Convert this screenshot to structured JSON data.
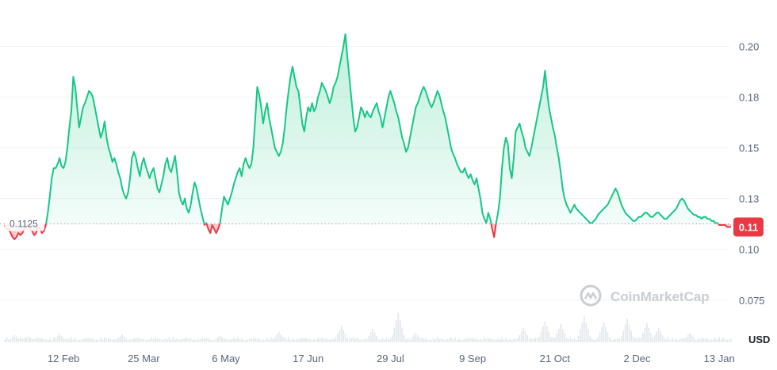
{
  "chart_data": {
    "type": "area",
    "y_unit": "USD",
    "baseline": 0.1125,
    "baseline_label": "0.1125",
    "current_price_label": "0.11",
    "ylim": [
      0.055,
      0.215
    ],
    "y_ticks": [
      {
        "value": 0.2,
        "label": "0.20"
      },
      {
        "value": 0.175,
        "label": "0.18"
      },
      {
        "value": 0.15,
        "label": "0.15"
      },
      {
        "value": 0.125,
        "label": "0.13"
      },
      {
        "value": 0.1,
        "label": "0.10"
      },
      {
        "value": 0.075,
        "label": "0.075"
      }
    ],
    "x_ticks": [
      "12 Feb",
      "25 Mar",
      "6 May",
      "17 Jun",
      "29 Jul",
      "9 Sep",
      "21 Oct",
      "2 Dec",
      "13 Jan"
    ],
    "x_tick_index": [
      30,
      71,
      113,
      155,
      197,
      239,
      281,
      323,
      365
    ],
    "values": [
      0.112,
      0.11,
      0.11,
      0.108,
      0.106,
      0.105,
      0.106,
      0.108,
      0.107,
      0.108,
      0.11,
      0.111,
      0.112,
      0.11,
      0.109,
      0.107,
      0.108,
      0.111,
      0.11,
      0.108,
      0.109,
      0.112,
      0.118,
      0.126,
      0.135,
      0.14,
      0.14,
      0.142,
      0.145,
      0.141,
      0.14,
      0.143,
      0.15,
      0.16,
      0.168,
      0.185,
      0.18,
      0.17,
      0.16,
      0.165,
      0.17,
      0.172,
      0.175,
      0.178,
      0.177,
      0.175,
      0.17,
      0.165,
      0.16,
      0.155,
      0.158,
      0.163,
      0.155,
      0.15,
      0.147,
      0.143,
      0.145,
      0.142,
      0.138,
      0.135,
      0.13,
      0.127,
      0.125,
      0.128,
      0.135,
      0.145,
      0.148,
      0.145,
      0.14,
      0.136,
      0.142,
      0.145,
      0.141,
      0.138,
      0.135,
      0.138,
      0.14,
      0.135,
      0.13,
      0.128,
      0.132,
      0.136,
      0.142,
      0.145,
      0.14,
      0.138,
      0.142,
      0.146,
      0.138,
      0.128,
      0.124,
      0.122,
      0.125,
      0.12,
      0.118,
      0.122,
      0.128,
      0.133,
      0.13,
      0.125,
      0.12,
      0.116,
      0.112,
      0.113,
      0.11,
      0.108,
      0.112,
      0.11,
      0.108,
      0.11,
      0.113,
      0.12,
      0.126,
      0.124,
      0.122,
      0.125,
      0.128,
      0.132,
      0.135,
      0.138,
      0.14,
      0.136,
      0.142,
      0.145,
      0.142,
      0.14,
      0.142,
      0.15,
      0.165,
      0.18,
      0.176,
      0.17,
      0.162,
      0.168,
      0.172,
      0.165,
      0.16,
      0.155,
      0.15,
      0.148,
      0.146,
      0.148,
      0.152,
      0.16,
      0.17,
      0.178,
      0.185,
      0.19,
      0.185,
      0.18,
      0.178,
      0.17,
      0.162,
      0.158,
      0.165,
      0.17,
      0.168,
      0.172,
      0.168,
      0.17,
      0.175,
      0.178,
      0.182,
      0.18,
      0.178,
      0.175,
      0.172,
      0.175,
      0.18,
      0.182,
      0.185,
      0.19,
      0.195,
      0.2,
      0.206,
      0.195,
      0.185,
      0.175,
      0.165,
      0.158,
      0.16,
      0.165,
      0.17,
      0.168,
      0.165,
      0.168,
      0.166,
      0.165,
      0.168,
      0.17,
      0.172,
      0.168,
      0.165,
      0.16,
      0.165,
      0.17,
      0.175,
      0.178,
      0.175,
      0.172,
      0.168,
      0.165,
      0.16,
      0.155,
      0.152,
      0.148,
      0.15,
      0.155,
      0.16,
      0.165,
      0.17,
      0.172,
      0.175,
      0.178,
      0.18,
      0.178,
      0.175,
      0.172,
      0.17,
      0.172,
      0.175,
      0.178,
      0.176,
      0.172,
      0.168,
      0.165,
      0.16,
      0.155,
      0.15,
      0.147,
      0.145,
      0.142,
      0.14,
      0.138,
      0.138,
      0.14,
      0.137,
      0.135,
      0.137,
      0.134,
      0.132,
      0.135,
      0.13,
      0.125,
      0.118,
      0.115,
      0.113,
      0.118,
      0.115,
      0.11,
      0.106,
      0.113,
      0.118,
      0.126,
      0.14,
      0.15,
      0.155,
      0.152,
      0.14,
      0.135,
      0.145,
      0.158,
      0.16,
      0.162,
      0.158,
      0.155,
      0.15,
      0.148,
      0.146,
      0.15,
      0.155,
      0.16,
      0.165,
      0.17,
      0.175,
      0.18,
      0.188,
      0.178,
      0.17,
      0.165,
      0.16,
      0.156,
      0.15,
      0.145,
      0.138,
      0.13,
      0.125,
      0.122,
      0.12,
      0.118,
      0.12,
      0.122,
      0.12,
      0.119,
      0.118,
      0.117,
      0.116,
      0.115,
      0.114,
      0.113,
      0.113,
      0.114,
      0.115,
      0.117,
      0.118,
      0.119,
      0.12,
      0.121,
      0.122,
      0.124,
      0.126,
      0.128,
      0.13,
      0.128,
      0.125,
      0.122,
      0.12,
      0.118,
      0.117,
      0.116,
      0.115,
      0.114,
      0.114,
      0.115,
      0.116,
      0.116,
      0.117,
      0.118,
      0.118,
      0.117,
      0.116,
      0.116,
      0.117,
      0.118,
      0.118,
      0.117,
      0.116,
      0.115,
      0.115,
      0.116,
      0.117,
      0.118,
      0.119,
      0.12,
      0.122,
      0.124,
      0.125,
      0.124,
      0.122,
      0.12,
      0.119,
      0.118,
      0.117,
      0.117,
      0.116,
      0.116,
      0.115,
      0.116,
      0.116,
      0.115,
      0.115,
      0.114,
      0.114,
      0.113,
      0.113,
      0.112,
      0.112,
      0.112,
      0.112,
      0.111,
      0.111,
      0.111
    ],
    "volume_spikes": [
      {
        "index": 5,
        "level": 0.15
      },
      {
        "index": 12,
        "level": 0.12
      },
      {
        "index": 28,
        "level": 0.18
      },
      {
        "index": 60,
        "level": 0.16
      },
      {
        "index": 110,
        "level": 0.14
      },
      {
        "index": 140,
        "level": 0.22
      },
      {
        "index": 172,
        "level": 0.35
      },
      {
        "index": 188,
        "level": 0.28
      },
      {
        "index": 201,
        "level": 0.62
      },
      {
        "index": 210,
        "level": 0.2
      },
      {
        "index": 265,
        "level": 0.3
      },
      {
        "index": 276,
        "level": 0.45
      },
      {
        "index": 284,
        "level": 0.38
      },
      {
        "index": 296,
        "level": 0.55
      },
      {
        "index": 306,
        "level": 0.42
      },
      {
        "index": 318,
        "level": 0.5
      },
      {
        "index": 328,
        "level": 0.4
      },
      {
        "index": 334,
        "level": 0.3
      },
      {
        "index": 350,
        "level": 0.2
      }
    ]
  },
  "watermark": {
    "brand": "CoinMarketCap",
    "color": "#c9cdd4"
  },
  "colors": {
    "up": "#16c784",
    "down": "#ea3943",
    "grid": "#eff2f5",
    "axis_text": "#58667e"
  }
}
